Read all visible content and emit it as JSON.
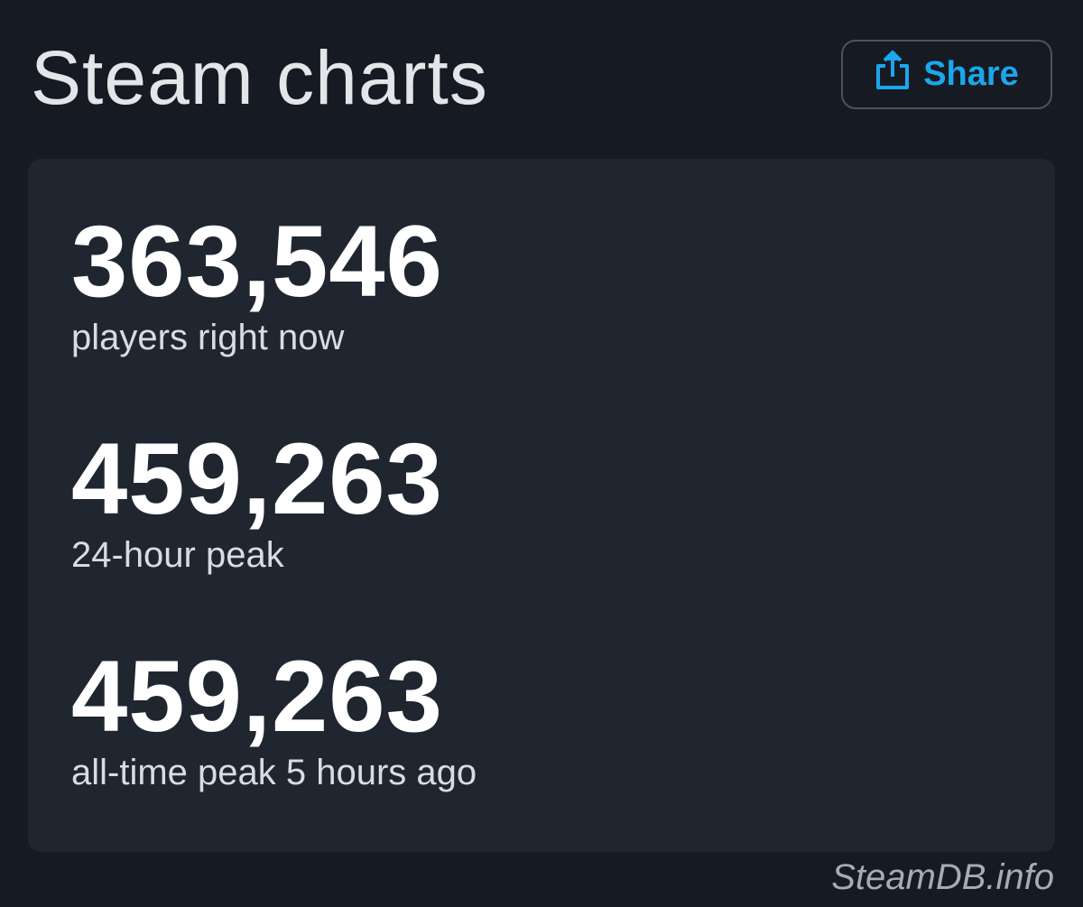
{
  "header": {
    "title": "Steam charts",
    "share_label": "Share",
    "share_icon": "share-icon",
    "accent": "#1aa7ec"
  },
  "stats": [
    {
      "value": "363,546",
      "label": "players right now"
    },
    {
      "value": "459,263",
      "label": "24-hour peak"
    },
    {
      "value": "459,263",
      "label": "all-time peak 5 hours ago"
    }
  ],
  "footer": {
    "source": "SteamDB.info"
  }
}
